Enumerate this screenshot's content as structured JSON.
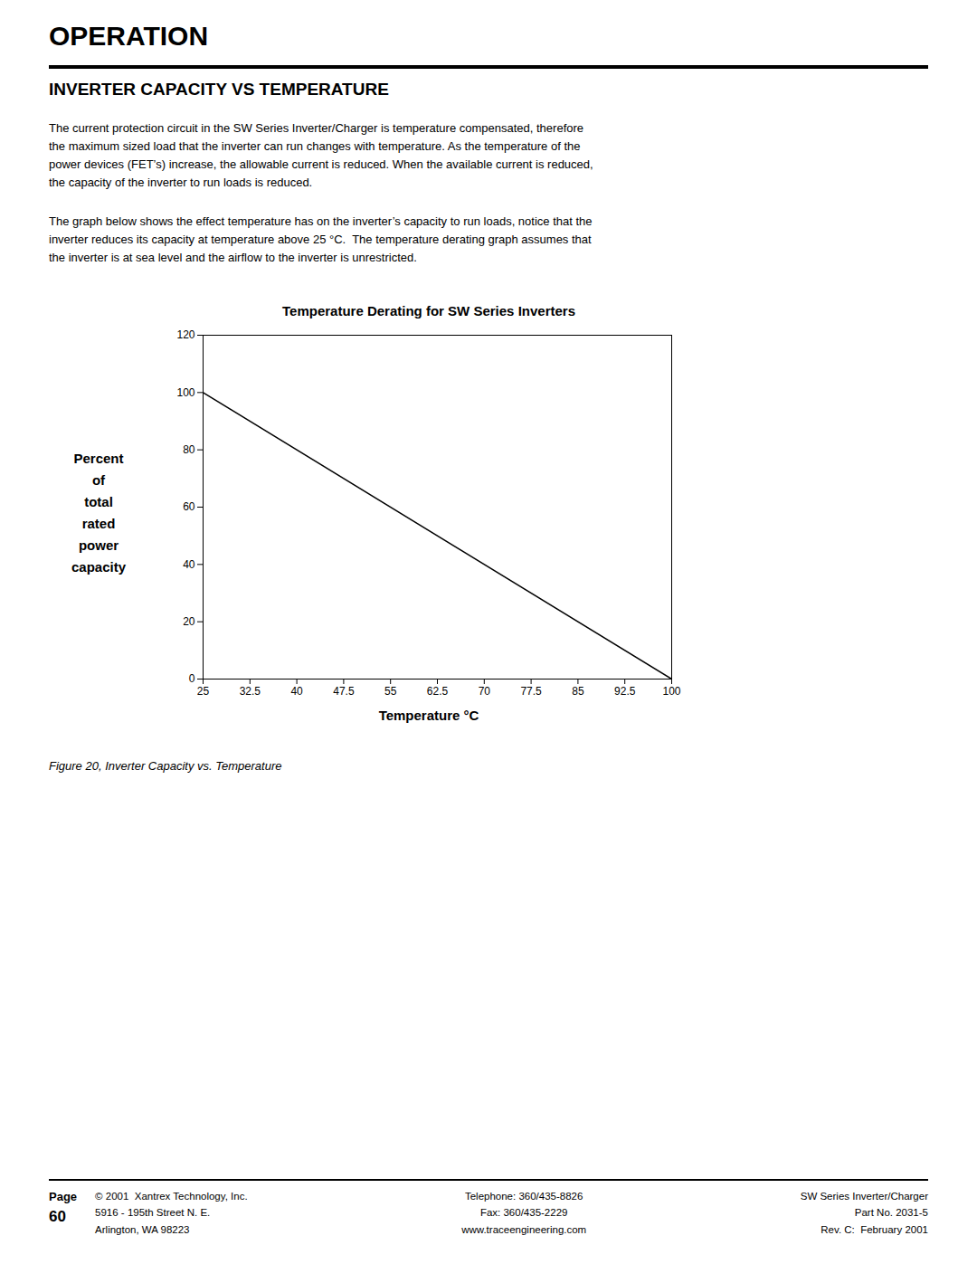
{
  "header": "OPERATION",
  "section_title": "INVERTER CAPACITY VS TEMPERATURE",
  "body_text": [
    "The current protection circuit in the SW Series Inverter/Charger is temperature compensated, therefore\nthe maximum sized load that the inverter can run changes with temperature. As the temperature of the\npower devices (FET’s) increase, the allowable current is reduced. When the available current is reduced,\nthe capacity of the inverter to run loads is reduced.",
    "The graph below shows the effect temperature has on the inverter’s capacity to run loads, notice that the\ninverter reduces its capacity at temperature above 25 °C.  The temperature derating graph assumes that\nthe inverter is at sea level and the airflow to the inverter is unrestricted."
  ],
  "caption": "Figure 20, Inverter Capacity vs. Temperature",
  "footer": {
    "page_label": "Page",
    "page_number": "60",
    "left": "© 2001  Xantrex Technology, Inc.\n5916 - 195th Street N. E.\nArlington, WA 98223",
    "center": "Telephone: 360/435-8826\nFax: 360/435-2229\nwww.traceengineering.com",
    "right": "SW Series Inverter/Charger\nPart No. 2031-5\nRev. C:  February 2001"
  },
  "chart_data": {
    "type": "line",
    "title": "Temperature Derating for SW Series Inverters",
    "xlabel": "Temperature °C",
    "ylabel": "Percent\nof\ntotal\nrated\npower\ncapacity",
    "x": [
      25,
      100
    ],
    "values": [
      100,
      0
    ],
    "color": "#000000",
    "xlim": [
      25,
      100
    ],
    "ylim": [
      0,
      120
    ],
    "xticks": [
      25,
      32.5,
      40,
      47.5,
      55,
      62.5,
      70,
      77.5,
      85,
      92.5,
      100
    ],
    "yticks": [
      0,
      20,
      40,
      60,
      80,
      100,
      120
    ],
    "grid": false
  }
}
